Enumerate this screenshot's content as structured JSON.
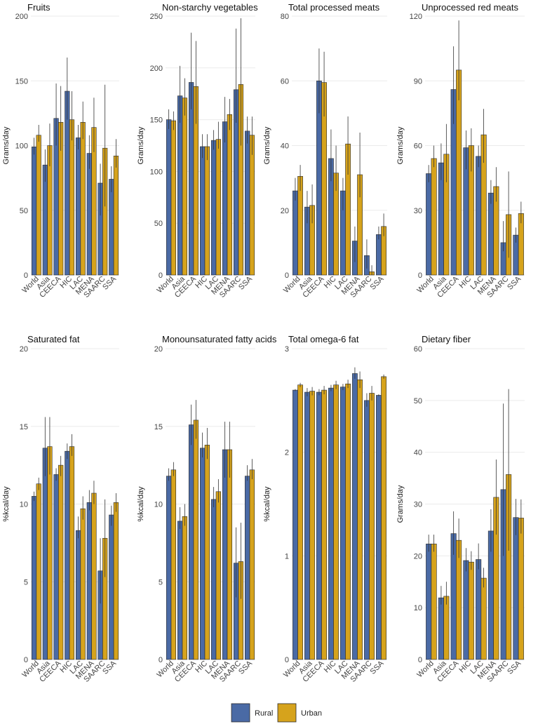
{
  "legend": [
    {
      "name": "Rural",
      "color": "#4a6aa5"
    },
    {
      "name": "Urban",
      "color": "#d6a31c"
    }
  ],
  "chart_data": [
    {
      "type": "bar",
      "title": "Fruits",
      "ylabel": "Grams/day",
      "ylim": [
        0,
        200
      ],
      "yticks": [
        0,
        50,
        100,
        150,
        200
      ],
      "categories": [
        "World",
        "Asia",
        "CEECA",
        "HIC",
        "LAC",
        "MENA",
        "SAARC",
        "SSA"
      ],
      "series": [
        {
          "name": "Rural",
          "values": [
            99,
            85,
            121,
            142,
            106,
            94,
            71,
            74
          ],
          "err_low": [
            93,
            72,
            100,
            120,
            97,
            82,
            46,
            64
          ],
          "err_high": [
            106,
            97,
            148,
            168,
            116,
            108,
            86,
            84
          ]
        },
        {
          "name": "Urban",
          "values": [
            108,
            100,
            118,
            120,
            118,
            114,
            98,
            92
          ],
          "err_low": [
            103,
            84,
            96,
            104,
            105,
            95,
            53,
            83
          ],
          "err_high": [
            116,
            117,
            146,
            142,
            134,
            137,
            147,
            105
          ]
        }
      ]
    },
    {
      "type": "bar",
      "title": "Non-starchy vegetables",
      "ylabel": "Grams/day",
      "ylim": [
        0,
        250
      ],
      "yticks": [
        0,
        50,
        100,
        150,
        200,
        250
      ],
      "categories": [
        "World",
        "Asia",
        "CEECA",
        "HIC",
        "LAC",
        "MENA",
        "SAARC",
        "SSA"
      ],
      "series": [
        {
          "name": "Rural",
          "values": [
            150,
            173,
            186,
            124,
            130,
            148,
            179,
            139
          ],
          "err_low": [
            141,
            147,
            160,
            113,
            121,
            128,
            147,
            127
          ],
          "err_high": [
            160,
            202,
            234,
            136,
            140,
            172,
            238,
            153
          ]
        },
        {
          "name": "Urban",
          "values": [
            149,
            171,
            182,
            124,
            131,
            155,
            184,
            135
          ],
          "err_low": [
            140,
            154,
            146,
            111,
            122,
            140,
            125,
            116
          ],
          "err_high": [
            158,
            190,
            226,
            136,
            148,
            170,
            248,
            153
          ]
        }
      ]
    },
    {
      "type": "bar",
      "title": "Total processed meats",
      "ylabel": "Grams/day",
      "ylim": [
        0,
        80
      ],
      "yticks": [
        0,
        20,
        40,
        60,
        80
      ],
      "categories": [
        "World",
        "Asia",
        "CEECA",
        "HIC",
        "LAC",
        "MENA",
        "SAARC",
        "SSA"
      ],
      "series": [
        {
          "name": "Rural",
          "values": [
            26,
            21,
            60,
            36,
            26,
            10.5,
            6,
            12.5
          ],
          "err_low": [
            23,
            16,
            50,
            29,
            20,
            4,
            2,
            11
          ],
          "err_high": [
            30,
            26,
            70,
            45,
            30,
            15,
            11,
            15
          ]
        },
        {
          "name": "Urban",
          "values": [
            30.5,
            21.5,
            59.5,
            31.5,
            40.5,
            31,
            1,
            15
          ],
          "err_low": [
            26,
            16,
            49,
            26,
            31,
            24,
            0,
            12
          ],
          "err_high": [
            34,
            28,
            69,
            40,
            49,
            44,
            3,
            19
          ]
        }
      ]
    },
    {
      "type": "bar",
      "title": "Unprocessed red meats",
      "ylabel": "Grams/day",
      "ylim": [
        0,
        120
      ],
      "yticks": [
        0,
        30,
        60,
        90,
        120
      ],
      "categories": [
        "World",
        "Asia",
        "CEECA",
        "HIC",
        "LAC",
        "MENA",
        "SAARC",
        "SSA"
      ],
      "series": [
        {
          "name": "Rural",
          "values": [
            47,
            52,
            86,
            59,
            55,
            38,
            15,
            18.5
          ],
          "err_low": [
            43,
            44,
            70,
            49,
            50,
            33,
            11,
            15
          ],
          "err_high": [
            51,
            61,
            106,
            67,
            60,
            44,
            25,
            22
          ]
        },
        {
          "name": "Urban",
          "values": [
            54,
            56,
            95,
            60,
            65,
            41,
            28,
            28.5
          ],
          "err_low": [
            50,
            43,
            81,
            48,
            52,
            34,
            8,
            24
          ],
          "err_high": [
            60,
            70,
            118,
            68,
            77,
            50,
            48,
            34
          ]
        }
      ]
    },
    {
      "type": "bar",
      "title": "Saturated fat",
      "ylabel": "%kcal/day",
      "ylim": [
        0,
        20
      ],
      "yticks": [
        0,
        5,
        10,
        15,
        20
      ],
      "categories": [
        "World",
        "Asia",
        "CEECA",
        "HIC",
        "LAC",
        "MENA",
        "SAARC",
        "SSA"
      ],
      "series": [
        {
          "name": "Rural",
          "values": [
            10.5,
            13.6,
            11.9,
            13.4,
            8.3,
            10.1,
            5.7,
            9.3
          ],
          "err_low": [
            10.2,
            11.8,
            11.5,
            12.9,
            7.8,
            9.6,
            3.6,
            8.6
          ],
          "err_high": [
            10.8,
            15.6,
            12.3,
            13.9,
            9.2,
            10.9,
            7.8,
            9.9
          ]
        },
        {
          "name": "Urban",
          "values": [
            11.3,
            13.7,
            12.5,
            13.7,
            9.7,
            10.7,
            7.8,
            10.1
          ],
          "err_low": [
            10.9,
            11.9,
            11.8,
            13.1,
            9.0,
            10.0,
            5.3,
            9.5
          ],
          "err_high": [
            11.7,
            15.6,
            13.1,
            14.5,
            10.5,
            11.5,
            10.3,
            10.7
          ]
        }
      ]
    },
    {
      "type": "bar",
      "title": "Monounsaturated fatty acids",
      "ylabel": "%kcal/day",
      "ylim": [
        0,
        20
      ],
      "yticks": [
        0,
        5,
        10,
        15,
        20
      ],
      "categories": [
        "World",
        "Asia",
        "CEECA",
        "HIC",
        "LAC",
        "MENA",
        "SAARC",
        "SSA"
      ],
      "series": [
        {
          "name": "Rural",
          "values": [
            11.8,
            8.9,
            15.1,
            13.6,
            10.3,
            13.5,
            6.2,
            11.8
          ],
          "err_low": [
            11.5,
            8.4,
            13.8,
            13.0,
            9.8,
            11.7,
            4.0,
            11.5
          ],
          "err_high": [
            12.3,
            9.8,
            16.4,
            14.6,
            11.1,
            15.3,
            8.5,
            12.5
          ]
        },
        {
          "name": "Urban",
          "values": [
            12.2,
            9.2,
            15.4,
            13.8,
            10.8,
            13.5,
            6.3,
            12.2
          ],
          "err_low": [
            11.8,
            8.6,
            14.2,
            12.9,
            10.1,
            11.7,
            3.9,
            11.6
          ],
          "err_high": [
            12.7,
            10.0,
            16.7,
            14.9,
            11.6,
            15.3,
            8.8,
            12.9
          ]
        }
      ]
    },
    {
      "type": "bar",
      "title": "Total omega-6 fat",
      "ylabel": "%kcal/day",
      "ylim": [
        0,
        3
      ],
      "yticks": [
        0,
        1,
        2,
        3
      ],
      "categories": [
        "World",
        "Asia",
        "CEECA",
        "HIC",
        "LAC",
        "MENA",
        "SAARC",
        "SSA"
      ],
      "series": [
        {
          "name": "Rural",
          "values": [
            2.6,
            2.58,
            2.58,
            2.62,
            2.63,
            2.76,
            2.5,
            2.55
          ],
          "err_low": [
            2.59,
            2.54,
            2.55,
            2.59,
            2.6,
            2.71,
            2.44,
            2.54
          ],
          "err_high": [
            2.61,
            2.62,
            2.61,
            2.65,
            2.66,
            2.82,
            2.57,
            2.56
          ]
        },
        {
          "name": "Urban",
          "values": [
            2.65,
            2.59,
            2.6,
            2.65,
            2.66,
            2.7,
            2.57,
            2.73
          ],
          "err_low": [
            2.63,
            2.55,
            2.56,
            2.61,
            2.62,
            2.62,
            2.5,
            2.71
          ],
          "err_high": [
            2.67,
            2.63,
            2.64,
            2.69,
            2.7,
            2.78,
            2.64,
            2.75
          ]
        }
      ]
    },
    {
      "type": "bar",
      "title": "Dietary fiber",
      "ylabel": "Grams/day",
      "ylim": [
        0,
        60
      ],
      "yticks": [
        0,
        10,
        20,
        30,
        40,
        50,
        60
      ],
      "categories": [
        "World",
        "Asia",
        "CEECA",
        "HIC",
        "LAC",
        "MENA",
        "SAARC",
        "SSA"
      ],
      "series": [
        {
          "name": "Rural",
          "values": [
            22.3,
            11.9,
            24.3,
            19.1,
            19.3,
            24.8,
            32.8,
            27.4
          ],
          "err_low": [
            20.8,
            10.6,
            20.2,
            17.0,
            17.4,
            20.8,
            20.0,
            24.0
          ],
          "err_high": [
            24.1,
            14.2,
            28.6,
            21.5,
            22.4,
            29.0,
            49.4,
            31.0
          ]
        },
        {
          "name": "Urban",
          "values": [
            22.3,
            12.2,
            23.0,
            18.8,
            15.7,
            31.3,
            35.7,
            27.3
          ],
          "err_low": [
            20.8,
            10.6,
            19.6,
            17.3,
            13.9,
            24.1,
            21.0,
            24.3
          ],
          "err_high": [
            24.1,
            15.0,
            27.2,
            20.9,
            17.7,
            38.6,
            52.2,
            30.9
          ]
        }
      ]
    }
  ]
}
